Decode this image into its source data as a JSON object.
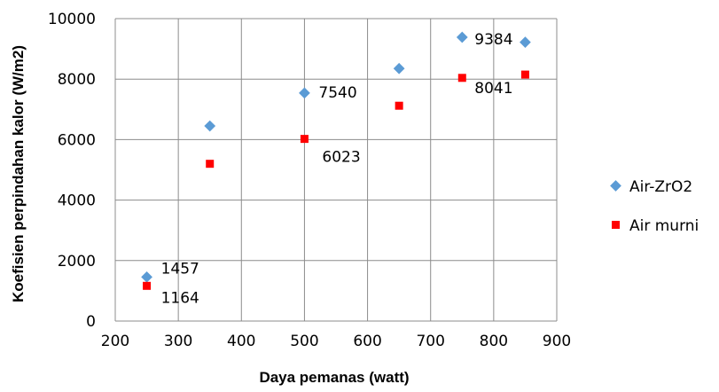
{
  "chart_data": {
    "type": "scatter",
    "title": "",
    "xlabel": "Daya pemanas (watt)",
    "ylabel": "Koefisien perpindahan kalor (W/m2)",
    "xlim": [
      200,
      900
    ],
    "ylim": [
      0,
      10000
    ],
    "x_ticks": [
      "200",
      "300",
      "400",
      "500",
      "600",
      "700",
      "800",
      "900"
    ],
    "y_ticks": [
      "0",
      "2000",
      "4000",
      "6000",
      "8000",
      "10000"
    ],
    "grid": true,
    "legend_position": "right",
    "series": [
      {
        "name": "Air-ZrO2",
        "marker": "diamond",
        "color": "#5B9BD5",
        "x": [
          250,
          350,
          500,
          650,
          750,
          850
        ],
        "y": [
          1457,
          6450,
          7540,
          8350,
          9384,
          9220
        ]
      },
      {
        "name": "Air murni",
        "marker": "square",
        "color": "#FF0000",
        "x": [
          250,
          350,
          500,
          650,
          750,
          850
        ],
        "y": [
          1164,
          5200,
          6023,
          7120,
          8041,
          8150
        ]
      }
    ],
    "data_labels": [
      {
        "text": "1457",
        "x": 250,
        "y": 1457,
        "series": 0
      },
      {
        "text": "1164",
        "x": 250,
        "y": 1164,
        "series": 1
      },
      {
        "text": "7540",
        "x": 500,
        "y": 7540,
        "series": 0
      },
      {
        "text": "6023",
        "x": 500,
        "y": 6023,
        "series": 1
      },
      {
        "text": "9384",
        "x": 750,
        "y": 9384,
        "series": 0
      },
      {
        "text": "8041",
        "x": 750,
        "y": 8041,
        "series": 1
      }
    ]
  }
}
